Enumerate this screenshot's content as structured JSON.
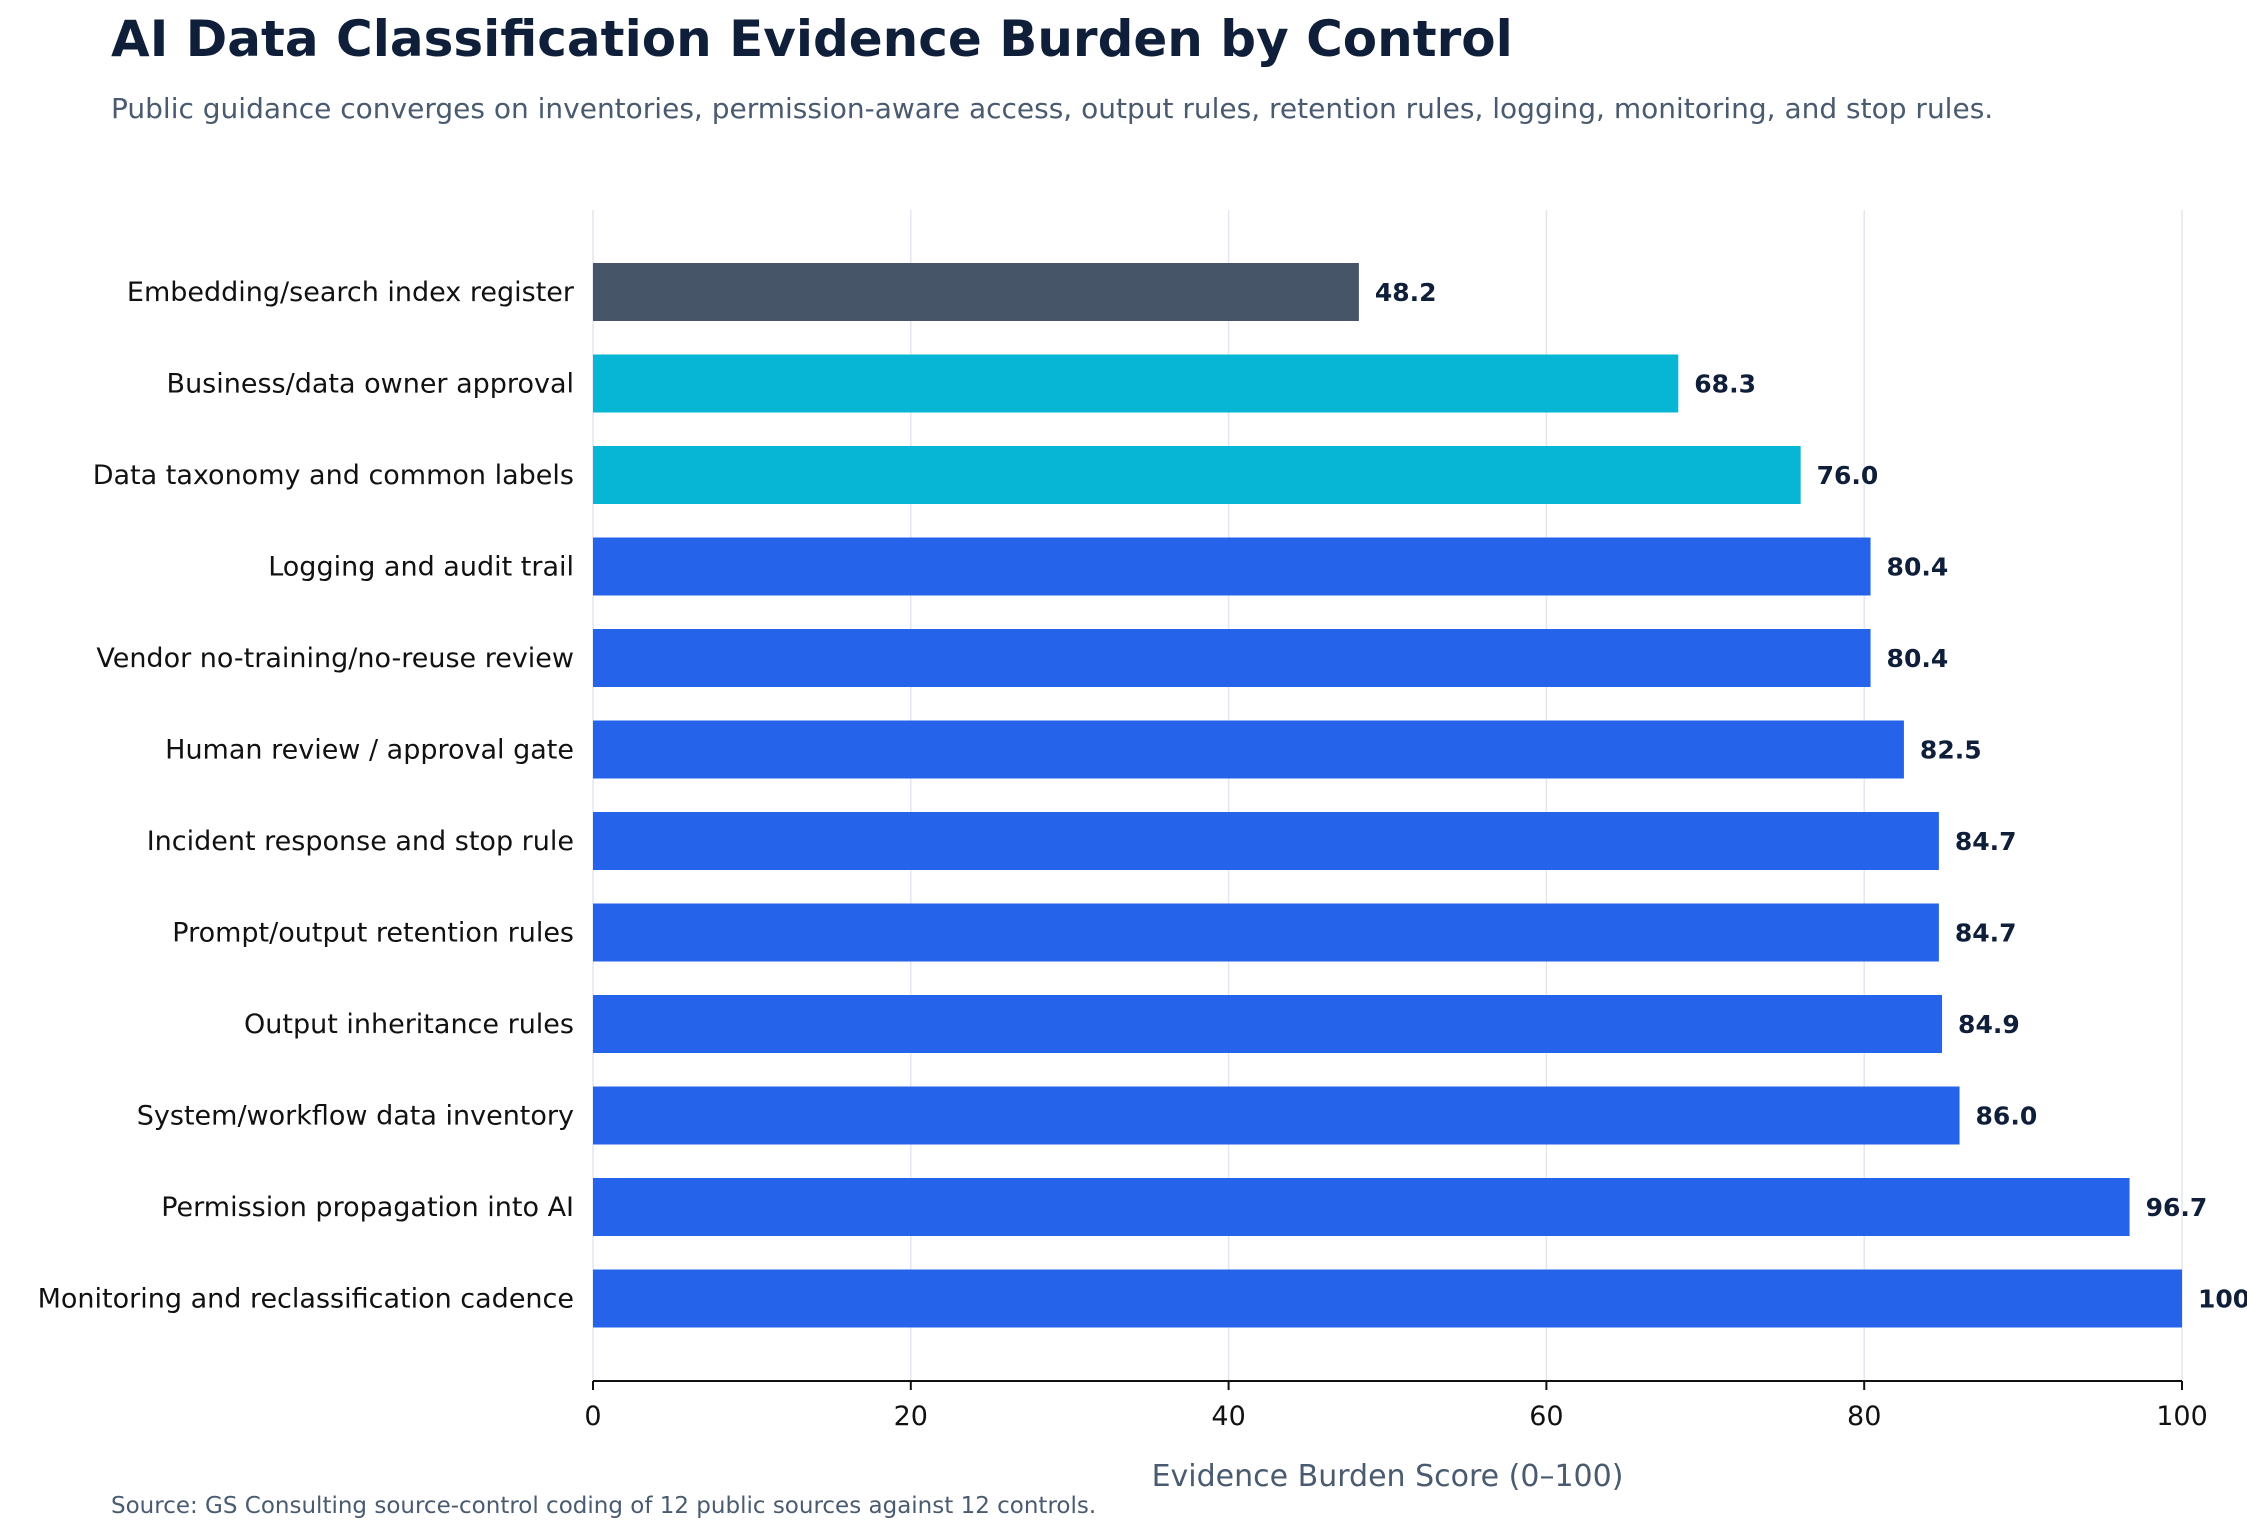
{
  "title": "AI Data Classification Evidence Burden by Control",
  "subtitle": "Public guidance converges on inventories, permission-aware access, output rules, retention rules, logging, monitoring, and stop rules.",
  "source": "Source: GS Consulting source-control coding of 12 public sources against 12 controls.",
  "colors": {
    "primary": "#2563eb",
    "secondary": "#06b6d4",
    "muted": "#475569",
    "grid": "#e3e6ef",
    "axis": "#111111"
  },
  "chart_data": {
    "type": "bar",
    "orientation": "horizontal",
    "title": "AI Data Classification Evidence Burden by Control",
    "subtitle": "Public guidance converges on inventories, permission-aware access, output rules, retention rules, logging, monitoring, and stop rules.",
    "xlabel": "Evidence Burden Score (0–100)",
    "ylabel": "",
    "xlim": [
      0,
      100
    ],
    "xticks": [
      0,
      20,
      40,
      60,
      80,
      100
    ],
    "grid": "vertical",
    "legend": "none",
    "categories": [
      "Embedding/search index register",
      "Business/data owner approval",
      "Data taxonomy and common labels",
      "Logging and audit trail",
      "Vendor no-training/no-reuse review",
      "Human review / approval gate",
      "Incident response and stop rule",
      "Prompt/output retention rules",
      "Output inheritance rules",
      "System/workflow data inventory",
      "Permission propagation into AI",
      "Monitoring and reclassification cadence"
    ],
    "values": [
      48.2,
      68.3,
      76.0,
      80.4,
      80.4,
      82.5,
      84.7,
      84.7,
      84.9,
      86.0,
      96.7,
      100.0
    ],
    "value_labels": [
      "48.2",
      "68.3",
      "76.0",
      "80.4",
      "80.4",
      "82.5",
      "84.7",
      "84.7",
      "84.9",
      "86.0",
      "96.7",
      "100.0"
    ],
    "bar_colors": [
      "#475569",
      "#06b6d4",
      "#06b6d4",
      "#2563eb",
      "#2563eb",
      "#2563eb",
      "#2563eb",
      "#2563eb",
      "#2563eb",
      "#2563eb",
      "#2563eb",
      "#2563eb"
    ]
  }
}
